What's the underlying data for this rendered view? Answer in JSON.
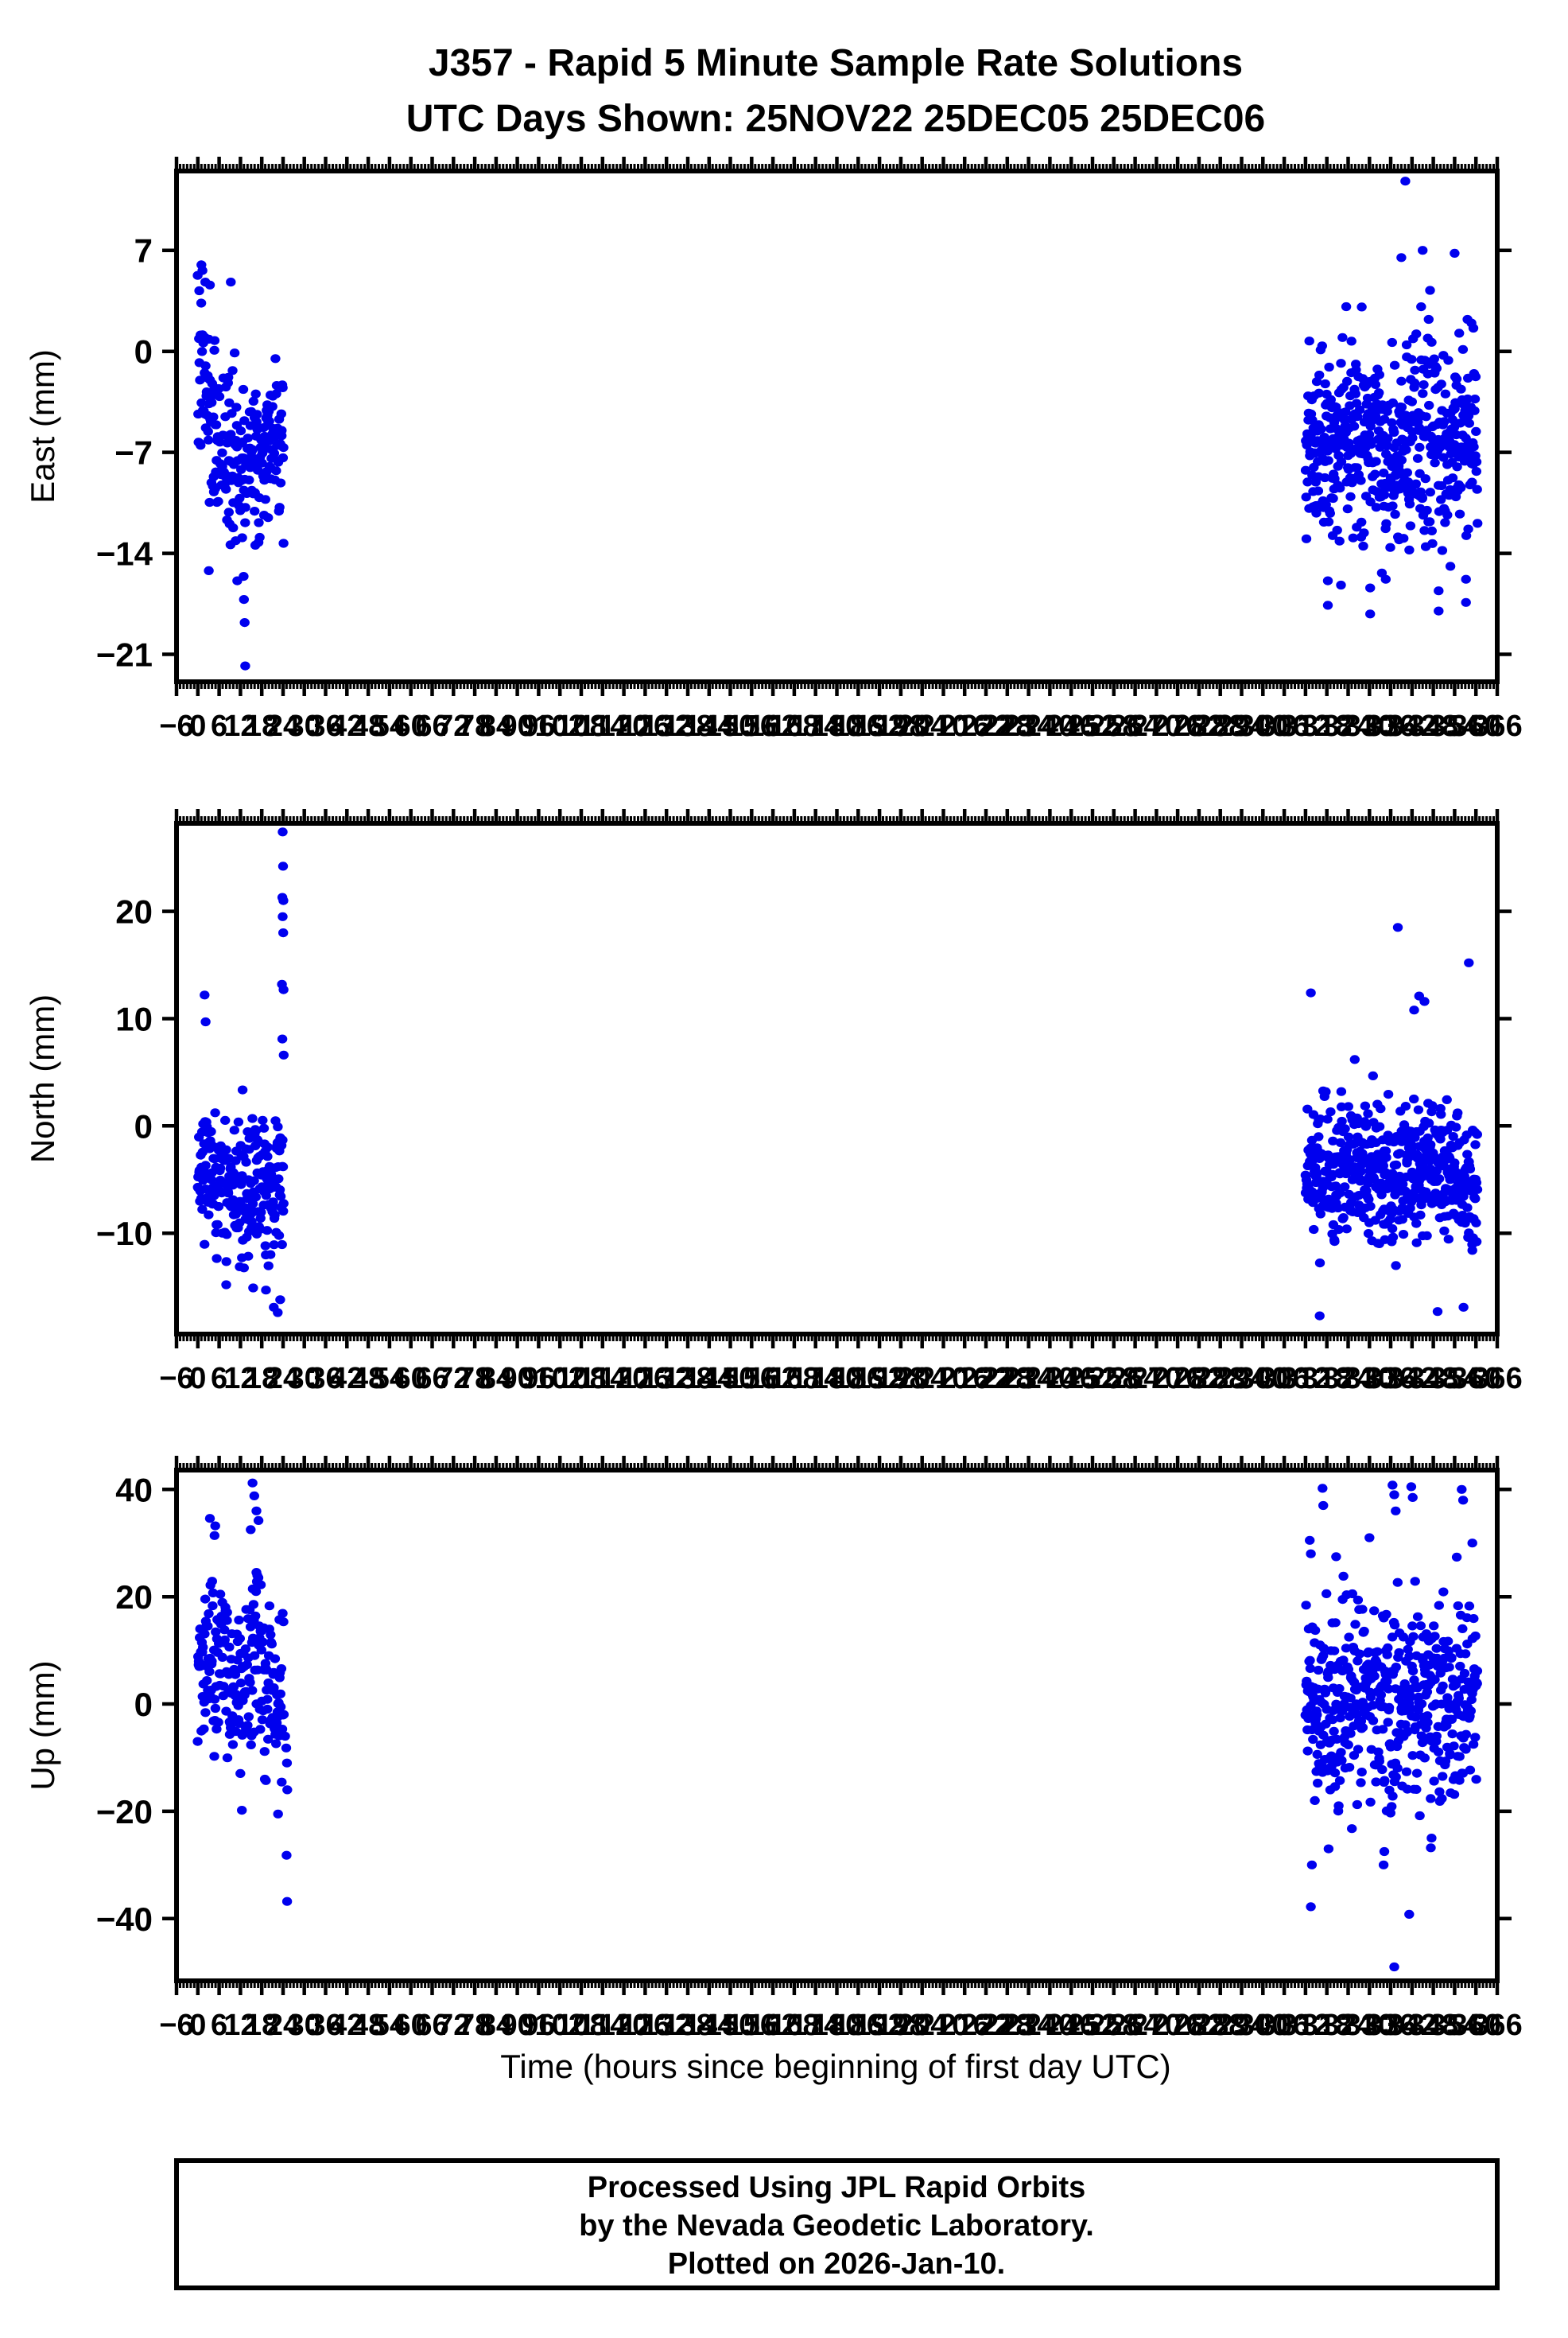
{
  "title": {
    "line1": "J357 - Rapid 5 Minute Sample Rate Solutions",
    "line2": "UTC Days Shown:  25NOV22 25DEC05 25DEC06"
  },
  "x_axis": {
    "label": "Time (hours since beginning of first day UTC)",
    "tick_start": -6,
    "tick_end": 366,
    "tick_step": 6,
    "minor_step": 1
  },
  "caption": {
    "line1": "Processed Using JPL Rapid Orbits",
    "line2": "by the Nevada Geodetic Laboratory.",
    "line3": "Plotted on 2026-Jan-10."
  },
  "colors": {
    "point": "#0000ee",
    "frame": "#000000",
    "background": "#ffffff"
  },
  "chart_data": [
    {
      "type": "scatter",
      "panel": "east",
      "ylabel": "East (mm)",
      "units": "mm",
      "xlim": [
        -6,
        366
      ],
      "ylim": [
        -22.9,
        12.5
      ],
      "yticks": [
        7,
        0,
        -7,
        -14,
        -21
      ],
      "ytick_labels": [
        "7",
        "0",
        "−7",
        "−14",
        "−21"
      ],
      "seed": 7,
      "clusters": [
        {
          "h_start": 0.0,
          "h_end": 24.3,
          "n": 235,
          "sigma": 2.9,
          "clamp": [
            -16.5,
            6.5
          ],
          "mean_path": [
            [
              0,
              -1.5
            ],
            [
              6,
              -6.5
            ],
            [
              12,
              -8.0
            ],
            [
              18,
              -7.0
            ],
            [
              24.3,
              -6.0
            ]
          ]
        },
        {
          "h_start": 312.0,
          "h_end": 360.5,
          "n": 520,
          "sigma": 3.3,
          "clamp": [
            -15.5,
            7.2
          ],
          "mean_path": [
            [
              312,
              -6.5
            ],
            [
              324,
              -5.5
            ],
            [
              336,
              -7.0
            ],
            [
              348,
              -5.5
            ],
            [
              360.5,
              -6.5
            ]
          ]
        }
      ],
      "outliers": [
        [
          0.4,
          4.2
        ],
        [
          1.0,
          6.0
        ],
        [
          1.3,
          5.6
        ],
        [
          2.1,
          4.8
        ],
        [
          3.4,
          4.6
        ],
        [
          9.3,
          4.8
        ],
        [
          3.1,
          -15.2
        ],
        [
          11.1,
          -15.9
        ],
        [
          12.9,
          -15.6
        ],
        [
          13.0,
          -17.2
        ],
        [
          13.2,
          -18.8
        ],
        [
          13.35,
          -21.8
        ],
        [
          340.1,
          11.8
        ],
        [
          345.0,
          7.0
        ],
        [
          339.0,
          6.5
        ],
        [
          354.0,
          6.8
        ],
        [
          318.3,
          -17.6
        ],
        [
          318.3,
          -15.9
        ],
        [
          322.0,
          -16.2
        ],
        [
          330.2,
          -18.2
        ],
        [
          330.2,
          -16.4
        ],
        [
          334.6,
          -15.8
        ],
        [
          349.5,
          -18.0
        ],
        [
          349.5,
          -16.6
        ],
        [
          352.8,
          -14.9
        ],
        [
          357.2,
          -17.4
        ],
        [
          357.2,
          -15.8
        ]
      ]
    },
    {
      "type": "scatter",
      "panel": "north",
      "ylabel": "North (mm)",
      "units": "mm",
      "xlim": [
        -6,
        366
      ],
      "ylim": [
        -19.4,
        28.2
      ],
      "yticks": [
        20,
        10,
        0,
        -10
      ],
      "ytick_labels": [
        "20",
        "10",
        "0",
        "−10"
      ],
      "seed": 11,
      "clusters": [
        {
          "h_start": 0.0,
          "h_end": 24.3,
          "n": 235,
          "sigma": 3.1,
          "clamp": [
            -14.0,
            3.5
          ],
          "mean_path": [
            [
              0,
              -3.0
            ],
            [
              6,
              -5.5
            ],
            [
              12,
              -6.5
            ],
            [
              18,
              -5.0
            ],
            [
              24.3,
              -5.5
            ]
          ]
        },
        {
          "h_start": 312.0,
          "h_end": 360.5,
          "n": 520,
          "sigma": 3.1,
          "clamp": [
            -13.5,
            8.2
          ],
          "mean_path": [
            [
              312,
              -5.0
            ],
            [
              324,
              -4.0
            ],
            [
              336,
              -5.0
            ],
            [
              348,
              -3.5
            ],
            [
              360.5,
              -5.0
            ]
          ]
        }
      ],
      "outliers": [
        [
          1.9,
          12.2
        ],
        [
          2.2,
          9.7
        ],
        [
          23.9,
          27.4
        ],
        [
          24.0,
          24.2
        ],
        [
          23.8,
          21.3
        ],
        [
          24.1,
          21.0
        ],
        [
          23.9,
          19.5
        ],
        [
          24.05,
          18.0
        ],
        [
          23.7,
          13.2
        ],
        [
          24.15,
          12.7
        ],
        [
          23.8,
          8.1
        ],
        [
          24.2,
          6.6
        ],
        [
          8.0,
          -14.8
        ],
        [
          15.6,
          -15.1
        ],
        [
          19.2,
          -15.3
        ],
        [
          21.4,
          -16.9
        ],
        [
          22.5,
          -17.4
        ],
        [
          23.2,
          -16.2
        ],
        [
          313.5,
          12.4
        ],
        [
          338.0,
          18.5
        ],
        [
          358.0,
          15.2
        ],
        [
          342.6,
          10.8
        ],
        [
          344.0,
          12.1
        ],
        [
          345.5,
          11.6
        ],
        [
          316.0,
          -17.7
        ],
        [
          349.2,
          -17.3
        ],
        [
          356.5,
          -16.9
        ]
      ]
    },
    {
      "type": "scatter",
      "panel": "up",
      "ylabel": "Up (mm)",
      "units": "mm",
      "xlim": [
        -6,
        366
      ],
      "ylim": [
        -51.6,
        43.6
      ],
      "yticks": [
        40,
        20,
        0,
        -20,
        -40
      ],
      "ytick_labels": [
        "40",
        "20",
        "0",
        "−20",
        "−40"
      ],
      "seed": 23,
      "clusters": [
        {
          "h_start": 0.0,
          "h_end": 24.3,
          "n": 220,
          "sigma": 8.3,
          "clamp": [
            -17.0,
            30.0
          ],
          "mean_path": [
            [
              0,
              6.0
            ],
            [
              5,
              9.0
            ],
            [
              10,
              3.0
            ],
            [
              16,
              8.0
            ],
            [
              20,
              2.0
            ],
            [
              24.3,
              0.0
            ]
          ]
        },
        {
          "h_start": 312.0,
          "h_end": 360.5,
          "n": 480,
          "sigma": 8.8,
          "clamp": [
            -24.0,
            30.0
          ],
          "mean_path": [
            [
              312,
              2.0
            ],
            [
              320,
              -3.0
            ],
            [
              328,
              3.0
            ],
            [
              336,
              -4.0
            ],
            [
              344,
              2.0
            ],
            [
              352,
              -2.0
            ],
            [
              360.5,
              4.0
            ]
          ]
        }
      ],
      "outliers": [
        [
          3.4,
          34.6
        ],
        [
          4.9,
          33.2
        ],
        [
          4.7,
          31.4
        ],
        [
          14.9,
          32.5
        ],
        [
          15.4,
          41.2
        ],
        [
          15.9,
          38.8
        ],
        [
          16.5,
          36.0
        ],
        [
          17.1,
          34.2
        ],
        [
          12.4,
          -19.8
        ],
        [
          22.6,
          -20.5
        ],
        [
          24.6,
          -6.0
        ],
        [
          24.9,
          -8.2
        ],
        [
          25.1,
          -11.0
        ],
        [
          25.2,
          -16.0
        ],
        [
          25.0,
          -28.2
        ],
        [
          25.15,
          -36.8
        ],
        [
          313.2,
          30.5
        ],
        [
          313.5,
          28.0
        ],
        [
          316.8,
          40.2
        ],
        [
          317.0,
          37.0
        ],
        [
          330.0,
          31.0
        ],
        [
          336.5,
          40.8
        ],
        [
          337.0,
          39.0
        ],
        [
          337.4,
          36.0
        ],
        [
          341.8,
          40.5
        ],
        [
          342.2,
          38.5
        ],
        [
          356.0,
          40.0
        ],
        [
          356.4,
          38.0
        ],
        [
          359.0,
          30.0
        ],
        [
          313.5,
          -37.8
        ],
        [
          313.8,
          -30.0
        ],
        [
          318.5,
          -27.0
        ],
        [
          334.0,
          -30.0
        ],
        [
          334.2,
          -27.5
        ],
        [
          341.2,
          -39.2
        ],
        [
          347.3,
          -26.8
        ],
        [
          347.5,
          -25.0
        ],
        [
          337.0,
          -49.0
        ]
      ]
    }
  ]
}
